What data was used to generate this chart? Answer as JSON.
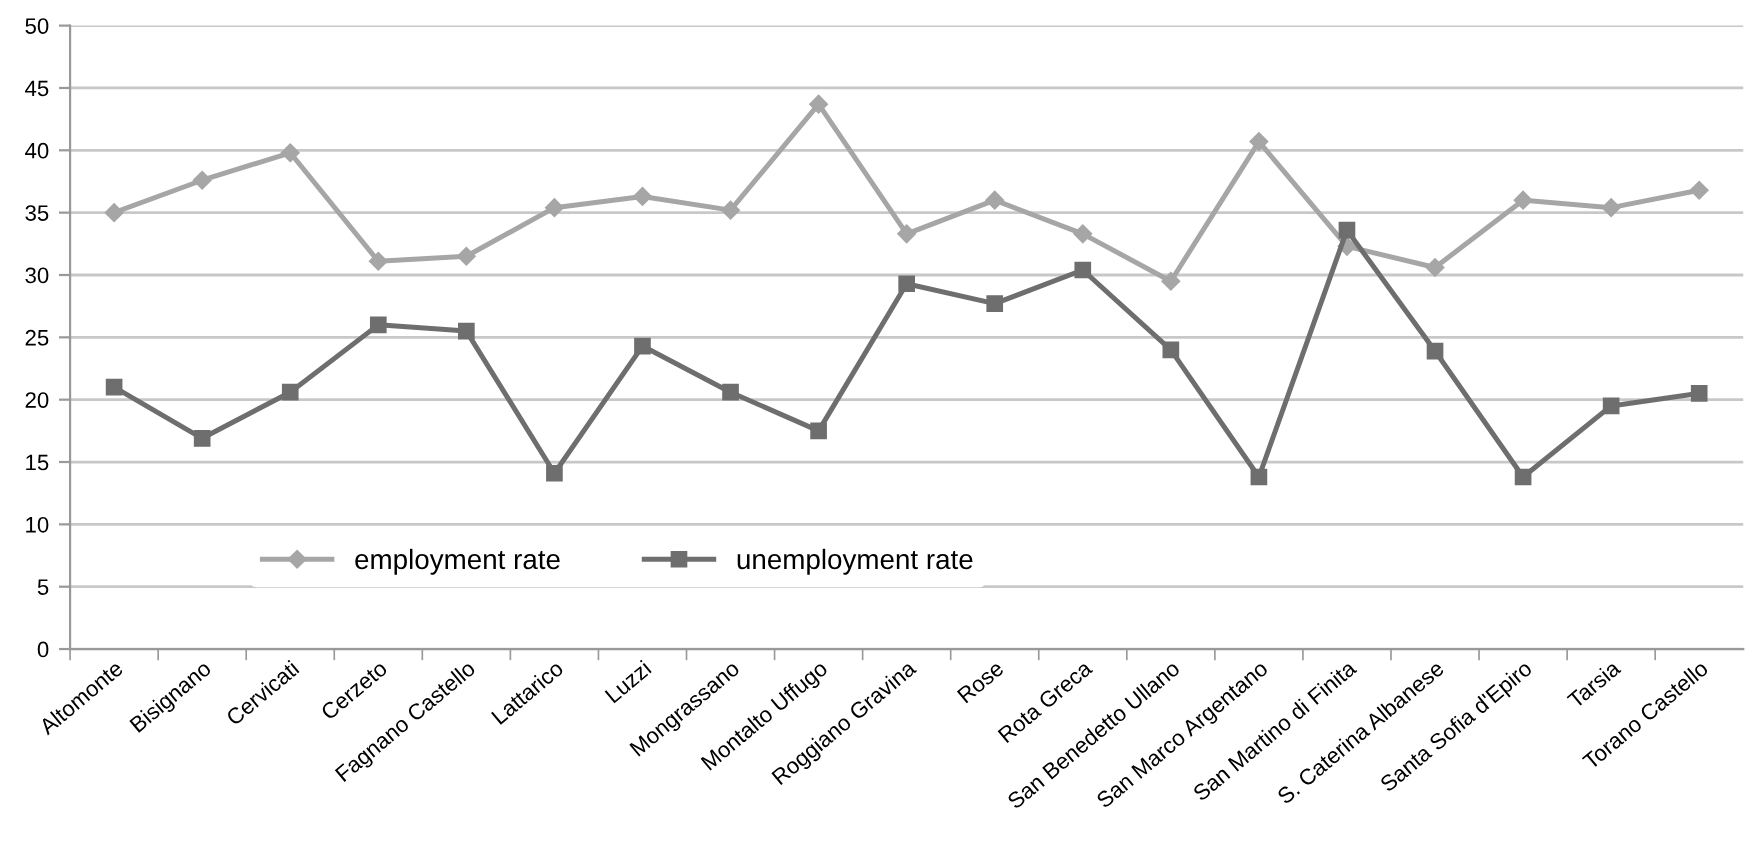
{
  "chart_data": {
    "type": "line",
    "categories": [
      "Altomonte",
      "Bisignano",
      "Cervicati",
      "Cerzeto",
      "Fagnano Castello",
      "Lattarico",
      "Luzzi",
      "Mongrassano",
      "Montalto Uffugo",
      "Roggiano Gravina",
      "Rose",
      "Rota Greca",
      "San Benedetto Ullano",
      "San Marco Argentano",
      "San Martino di Finita",
      "S. Caterina Albanese",
      "Santa Sofia d'Epiro",
      "Tarsia",
      "Torano Castello"
    ],
    "series": [
      {
        "name": "employment rate",
        "color": "#a6a6a6",
        "marker": "diamond",
        "values": [
          35,
          37.6,
          39.8,
          31.1,
          31.5,
          35.4,
          36.3,
          35.2,
          43.7,
          33.3,
          36,
          33.3,
          29.5,
          40.7,
          32.3,
          30.6,
          36,
          35.4,
          36.8
        ]
      },
      {
        "name": "unemployment rate",
        "color": "#6e6e6e",
        "marker": "square",
        "values": [
          21,
          16.9,
          20.6,
          26,
          25.5,
          14.1,
          24.3,
          20.6,
          17.5,
          29.3,
          27.7,
          30.4,
          24,
          13.8,
          33.6,
          23.9,
          13.8,
          19.5,
          20.5
        ]
      }
    ],
    "ylim": [
      0,
      50
    ],
    "yticks": [
      0,
      5,
      10,
      15,
      20,
      25,
      30,
      35,
      40,
      45,
      50
    ],
    "grid": "y",
    "legend": "bottom left",
    "line_style": "solid"
  }
}
